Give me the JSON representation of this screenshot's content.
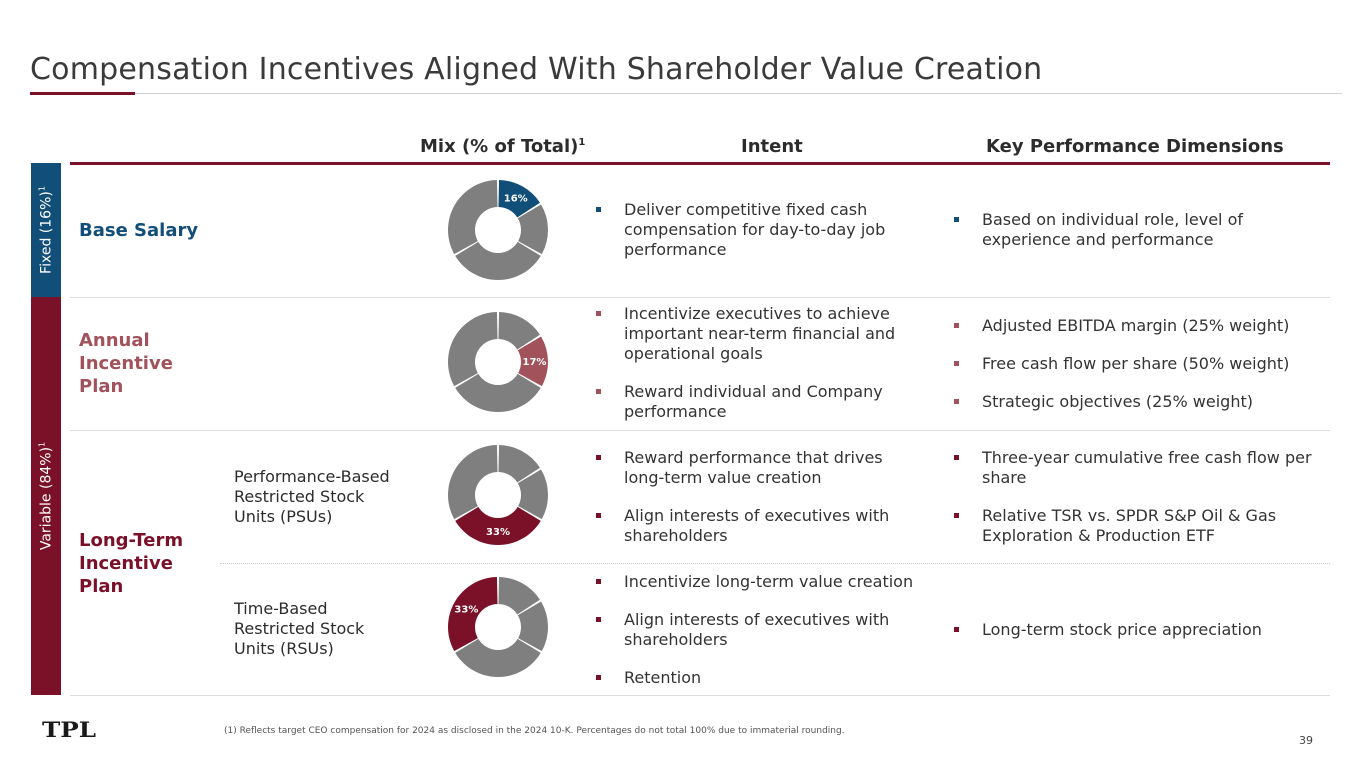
{
  "title": "Compensation Incentives Aligned With Shareholder Value Creation",
  "colors": {
    "navy": "#114e78",
    "maroon": "#7b1129",
    "rose": "#a1525b",
    "gray": "#7f7f7f"
  },
  "headers": {
    "mix": "Mix (% of Total)",
    "mix_note": "1",
    "intent": "Intent",
    "kpd": "Key Performance Dimensions"
  },
  "bands": {
    "fixed": {
      "label": "Fixed (16%)",
      "note": "1"
    },
    "variable": {
      "label": "Variable (84%)",
      "note": "1"
    }
  },
  "rows": {
    "base": {
      "label": "Base Salary",
      "chart": {
        "highlight": 16,
        "label": "16%",
        "color": "#114e78"
      },
      "intent": [
        "Deliver competitive fixed cash compensation for day-to-day job performance"
      ],
      "kpd": [
        "Based on individual role, level of experience and performance"
      ],
      "bullet_color": "#114e78"
    },
    "aip": {
      "label": "Annual Incentive Plan",
      "chart": {
        "highlight": 17,
        "label": "17%",
        "color": "#a1525b"
      },
      "intent": [
        "Incentivize executives to achieve important near-term financial and operational goals",
        "Reward individual and Company performance"
      ],
      "kpd": [
        "Adjusted EBITDA margin (25% weight)",
        "Free cash flow per share (50% weight)",
        "Strategic objectives (25% weight)"
      ],
      "bullet_color": "#a1525b"
    },
    "ltip": {
      "label": "Long-Term Incentive Plan",
      "psu": {
        "label": "Performance-Based Restricted Stock Units (PSUs)",
        "chart": {
          "highlight": 33,
          "label": "33%",
          "color": "#7b1129"
        },
        "intent": [
          "Reward performance that drives long-term value creation",
          "Align interests of executives with shareholders"
        ],
        "kpd": [
          "Three-year cumulative free cash flow per share",
          "Relative TSR vs. SPDR S&P Oil & Gas Exploration & Production ETF"
        ]
      },
      "rsu": {
        "label": "Time-Based Restricted Stock Units (RSUs)",
        "chart": {
          "highlight": 33,
          "label": "33%",
          "color": "#7b1129"
        },
        "intent": [
          "Incentivize long-term value creation",
          "Align interests of executives with shareholders",
          "Retention"
        ],
        "kpd": [
          "Long-term stock price appreciation"
        ]
      },
      "bullet_color": "#7b1129"
    }
  },
  "donut_segments": [
    16,
    17,
    33,
    33
  ],
  "logo_text": "TPL",
  "footnote": "(1)     Reflects target CEO compensation for 2024 as disclosed in the 2024 10-K. Percentages do not total 100% due to immaterial rounding.",
  "page_number": "39"
}
